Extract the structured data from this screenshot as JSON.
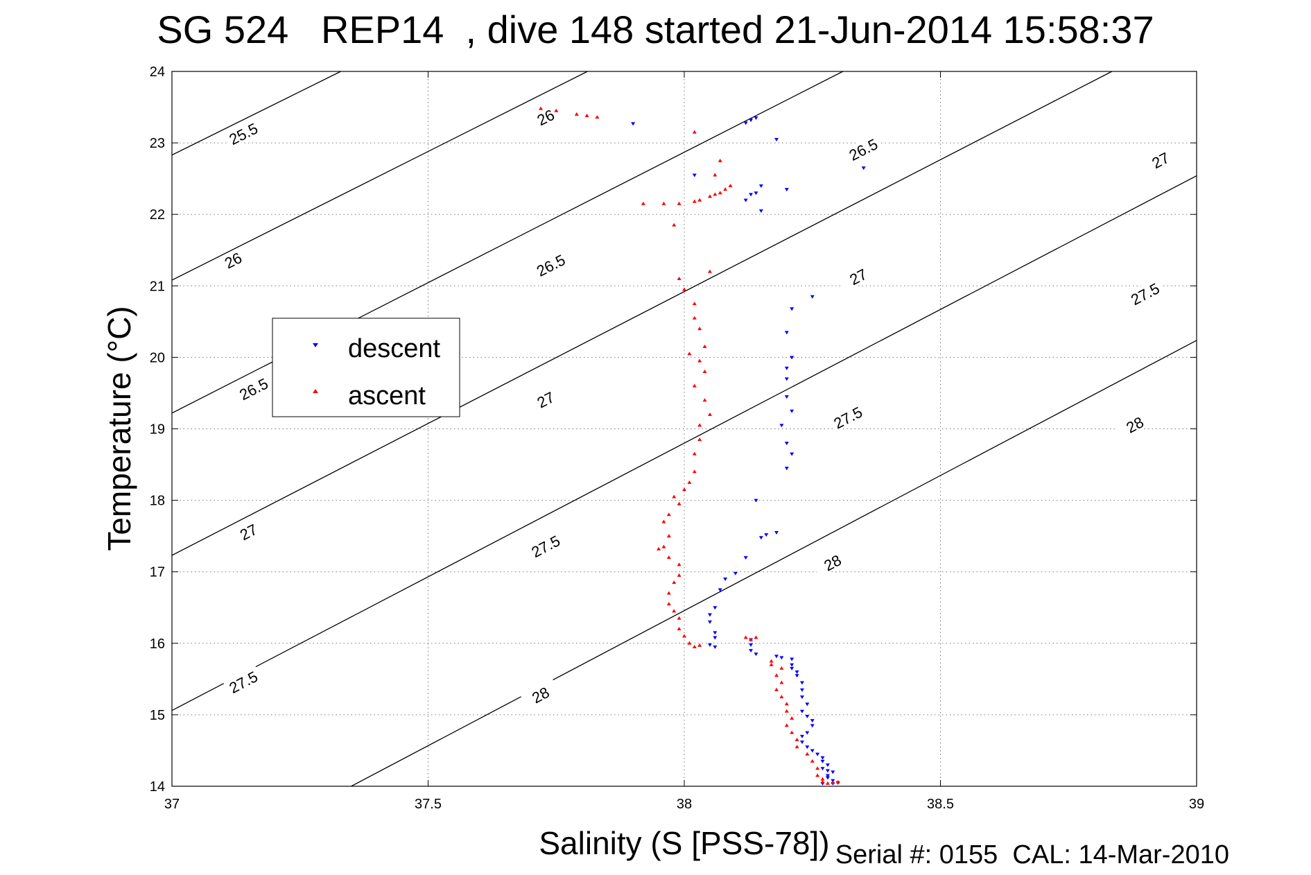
{
  "title": "SG 524   REP14  , dive 148 started 21-Jun-2014 15:58:37",
  "footer": "Serial #: 0155  CAL: 14-Mar-2010",
  "chart_data": {
    "type": "scatter",
    "xlabel": "Salinity (S [PSS-78])",
    "ylabel": "Temperature (°C)",
    "xlim": [
      37,
      39
    ],
    "ylim": [
      14,
      24
    ],
    "xticks": [
      37,
      37.5,
      38,
      38.5,
      39
    ],
    "xtick_labels": [
      "37",
      "37.5",
      "38",
      "38.5",
      "39"
    ],
    "yticks": [
      14,
      15,
      16,
      17,
      18,
      19,
      20,
      21,
      22,
      23,
      24
    ],
    "ytick_labels": [
      "14",
      "15",
      "16",
      "17",
      "18",
      "19",
      "20",
      "21",
      "22",
      "23",
      "24"
    ],
    "grid": true,
    "grid_style": "dotted",
    "legend_position": "center-left",
    "contours": [
      {
        "label": "25.5",
        "s0": 37.0,
        "t0": 22.83,
        "slope": 3.55,
        "label_positions": [
          [
            37.14,
            23.12
          ]
        ]
      },
      {
        "label": "26",
        "s0": 37.0,
        "t0": 21.08,
        "slope": 3.6,
        "label_positions": [
          [
            37.12,
            21.35
          ],
          [
            37.73,
            23.35
          ]
        ]
      },
      {
        "label": "26.5",
        "s0": 37.0,
        "t0": 19.22,
        "slope": 3.65,
        "label_positions": [
          [
            37.16,
            19.55
          ],
          [
            37.74,
            21.28
          ],
          [
            38.35,
            22.9
          ]
        ]
      },
      {
        "label": "27",
        "s0": 37.0,
        "t0": 17.23,
        "slope": 3.69,
        "label_positions": [
          [
            37.15,
            17.55
          ],
          [
            37.73,
            19.4
          ],
          [
            38.34,
            21.12
          ],
          [
            38.93,
            22.75
          ]
        ]
      },
      {
        "label": "27.5",
        "s0": 37.0,
        "t0": 15.06,
        "slope": 3.74,
        "label_positions": [
          [
            37.14,
            15.45
          ],
          [
            37.73,
            17.35
          ],
          [
            38.32,
            19.15
          ],
          [
            38.9,
            20.88
          ]
        ]
      },
      {
        "label": "28",
        "s0": 37.35,
        "t0": 14.0,
        "slope": 3.78,
        "label_positions": [
          [
            37.72,
            15.27
          ],
          [
            38.29,
            17.12
          ],
          [
            38.88,
            19.05
          ]
        ]
      }
    ],
    "series": [
      {
        "name": "descent",
        "color": "#0000ff",
        "marker": "down-triangle",
        "points": [
          [
            37.9,
            23.27
          ],
          [
            38.12,
            23.28
          ],
          [
            38.13,
            23.32
          ],
          [
            38.14,
            23.35
          ],
          [
            38.18,
            23.05
          ],
          [
            38.35,
            22.65
          ],
          [
            38.02,
            22.55
          ],
          [
            38.15,
            22.4
          ],
          [
            38.2,
            22.35
          ],
          [
            38.14,
            22.3
          ],
          [
            38.13,
            22.28
          ],
          [
            38.12,
            22.2
          ],
          [
            38.15,
            22.05
          ],
          [
            38.25,
            20.85
          ],
          [
            38.21,
            20.68
          ],
          [
            38.2,
            20.35
          ],
          [
            38.21,
            20.0
          ],
          [
            38.2,
            19.85
          ],
          [
            38.2,
            19.7
          ],
          [
            38.2,
            19.45
          ],
          [
            38.21,
            19.25
          ],
          [
            38.19,
            19.05
          ],
          [
            38.2,
            18.8
          ],
          [
            38.21,
            18.65
          ],
          [
            38.2,
            18.45
          ],
          [
            38.14,
            18.0
          ],
          [
            38.18,
            17.55
          ],
          [
            38.16,
            17.52
          ],
          [
            38.15,
            17.48
          ],
          [
            38.12,
            17.2
          ],
          [
            38.1,
            16.98
          ],
          [
            38.08,
            16.9
          ],
          [
            38.07,
            16.75
          ],
          [
            38.06,
            16.5
          ],
          [
            38.05,
            16.4
          ],
          [
            38.05,
            16.3
          ],
          [
            38.06,
            16.15
          ],
          [
            38.06,
            16.08
          ],
          [
            38.05,
            15.98
          ],
          [
            38.06,
            15.95
          ],
          [
            38.13,
            16.05
          ],
          [
            38.13,
            15.98
          ],
          [
            38.13,
            15.9
          ],
          [
            38.14,
            15.85
          ],
          [
            38.18,
            15.82
          ],
          [
            38.19,
            15.8
          ],
          [
            38.21,
            15.78
          ],
          [
            38.21,
            15.7
          ],
          [
            38.21,
            15.65
          ],
          [
            38.22,
            15.6
          ],
          [
            38.22,
            15.55
          ],
          [
            38.23,
            15.45
          ],
          [
            38.23,
            15.35
          ],
          [
            38.23,
            15.25
          ],
          [
            38.24,
            15.15
          ],
          [
            38.23,
            15.05
          ],
          [
            38.24,
            14.98
          ],
          [
            38.25,
            14.92
          ],
          [
            38.25,
            14.85
          ],
          [
            38.24,
            14.75
          ],
          [
            38.23,
            14.7
          ],
          [
            38.23,
            14.62
          ],
          [
            38.24,
            14.55
          ],
          [
            38.25,
            14.5
          ],
          [
            38.26,
            14.45
          ],
          [
            38.27,
            14.4
          ],
          [
            38.27,
            14.35
          ],
          [
            38.28,
            14.3
          ],
          [
            38.27,
            14.25
          ],
          [
            38.28,
            14.22
          ],
          [
            38.29,
            14.2
          ],
          [
            38.28,
            14.15
          ],
          [
            38.28,
            14.12
          ],
          [
            38.29,
            14.08
          ],
          [
            38.3,
            14.05
          ],
          [
            38.29,
            14.04
          ],
          [
            38.27,
            14.04
          ]
        ]
      },
      {
        "name": "ascent",
        "color": "#ff0000",
        "marker": "up-triangle",
        "points": [
          [
            37.72,
            23.48
          ],
          [
            37.75,
            23.45
          ],
          [
            37.79,
            23.4
          ],
          [
            37.81,
            23.38
          ],
          [
            37.83,
            23.36
          ],
          [
            38.02,
            23.15
          ],
          [
            38.07,
            22.75
          ],
          [
            38.06,
            22.55
          ],
          [
            38.09,
            22.4
          ],
          [
            38.08,
            22.35
          ],
          [
            38.07,
            22.3
          ],
          [
            38.06,
            22.28
          ],
          [
            38.05,
            22.25
          ],
          [
            38.03,
            22.2
          ],
          [
            38.02,
            22.18
          ],
          [
            37.99,
            22.15
          ],
          [
            37.96,
            22.15
          ],
          [
            37.92,
            22.15
          ],
          [
            37.98,
            21.85
          ],
          [
            37.99,
            21.1
          ],
          [
            38.05,
            21.2
          ],
          [
            38.0,
            20.95
          ],
          [
            38.02,
            20.75
          ],
          [
            38.02,
            20.55
          ],
          [
            38.03,
            20.4
          ],
          [
            38.04,
            20.15
          ],
          [
            38.01,
            20.05
          ],
          [
            38.03,
            19.95
          ],
          [
            38.04,
            19.8
          ],
          [
            38.02,
            19.6
          ],
          [
            38.04,
            19.4
          ],
          [
            38.05,
            19.2
          ],
          [
            38.03,
            19.05
          ],
          [
            38.03,
            18.85
          ],
          [
            38.02,
            18.65
          ],
          [
            38.02,
            18.4
          ],
          [
            38.01,
            18.25
          ],
          [
            38.0,
            18.15
          ],
          [
            37.98,
            18.05
          ],
          [
            37.99,
            17.95
          ],
          [
            37.97,
            17.8
          ],
          [
            37.96,
            17.7
          ],
          [
            37.97,
            17.5
          ],
          [
            37.96,
            17.35
          ],
          [
            37.95,
            17.32
          ],
          [
            37.97,
            17.2
          ],
          [
            37.99,
            17.1
          ],
          [
            37.99,
            16.95
          ],
          [
            37.98,
            16.85
          ],
          [
            37.97,
            16.7
          ],
          [
            37.97,
            16.55
          ],
          [
            37.98,
            16.45
          ],
          [
            37.99,
            16.35
          ],
          [
            37.99,
            16.2
          ],
          [
            38.0,
            16.1
          ],
          [
            38.01,
            16.0
          ],
          [
            38.02,
            15.95
          ],
          [
            38.03,
            15.97
          ],
          [
            38.12,
            16.08
          ],
          [
            38.13,
            16.05
          ],
          [
            38.14,
            16.08
          ],
          [
            38.17,
            15.75
          ],
          [
            38.17,
            15.7
          ],
          [
            38.19,
            15.65
          ],
          [
            38.18,
            15.55
          ],
          [
            38.19,
            15.45
          ],
          [
            38.18,
            15.35
          ],
          [
            38.19,
            15.25
          ],
          [
            38.2,
            15.15
          ],
          [
            38.2,
            15.05
          ],
          [
            38.21,
            14.95
          ],
          [
            38.2,
            14.85
          ],
          [
            38.21,
            14.75
          ],
          [
            38.22,
            14.65
          ],
          [
            38.22,
            14.55
          ],
          [
            38.24,
            14.45
          ],
          [
            38.25,
            14.35
          ],
          [
            38.26,
            14.25
          ],
          [
            38.26,
            14.15
          ],
          [
            38.27,
            14.1
          ],
          [
            38.27,
            14.06
          ],
          [
            38.28,
            14.04
          ],
          [
            38.29,
            14.05
          ],
          [
            38.3,
            14.06
          ]
        ]
      }
    ]
  }
}
